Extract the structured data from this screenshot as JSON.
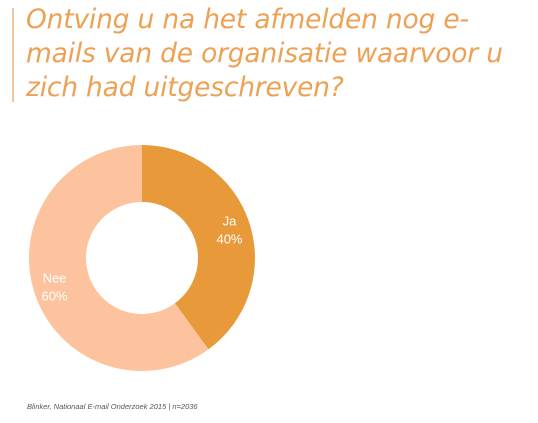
{
  "title": "Ontving u na het afmelden nog e-mails van de organisatie waarvoor u zich had uitgeschreven?",
  "source": "Blinker, Nationaal E-mail Onderzoek 2015 | n=2036",
  "chart_data": {
    "type": "pie",
    "donut": true,
    "title": "Ontving u na het afmelden nog e-mails van de organisatie waarvoor u zich had uitgeschreven?",
    "slices": [
      {
        "label": "Ja",
        "value": 40,
        "value_label": "40%",
        "color": "#e89a3a"
      },
      {
        "label": "Nee",
        "value": 60,
        "value_label": "60%",
        "color": "#fcc39e"
      }
    ],
    "legend": "none",
    "label_color": "#ffffff"
  }
}
